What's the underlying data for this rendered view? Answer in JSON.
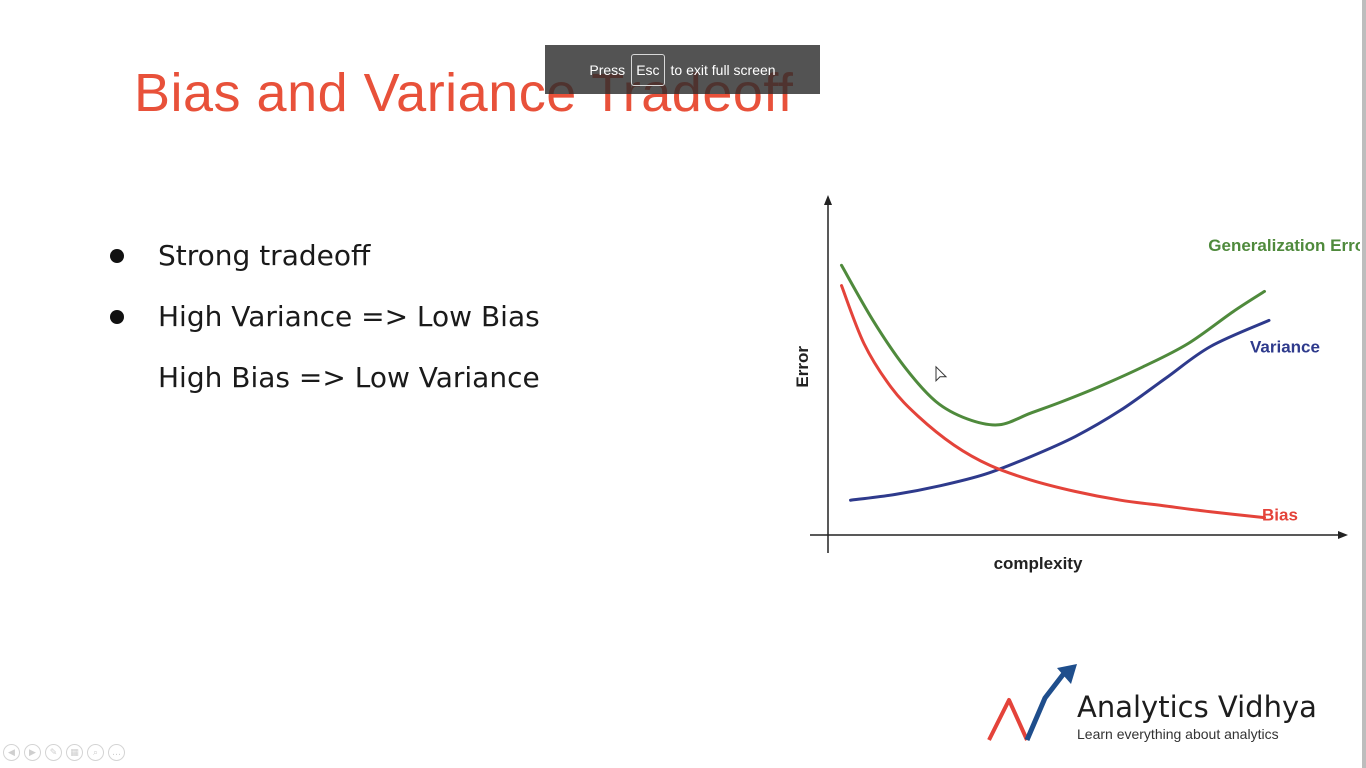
{
  "slide": {
    "title": "Bias and Variance Tradeoff",
    "bullets": [
      {
        "text": "Strong tradeoff",
        "marker": true
      },
      {
        "text": "High Variance => Low Bias",
        "marker": true
      },
      {
        "text": "High Bias => Low Variance",
        "marker": false
      }
    ]
  },
  "fullscreen_notice": {
    "prefix": "Press",
    "key": "Esc",
    "suffix": "to exit full screen"
  },
  "chart_data": {
    "type": "line",
    "xlabel": "complexity",
    "ylabel": "Error",
    "grid": false,
    "series": [
      {
        "name": "Generalization Error",
        "color": "#4f8a3c",
        "x": [
          0.03,
          0.1,
          0.17,
          0.24,
          0.31,
          0.38,
          0.45,
          0.52,
          0.6,
          0.7,
          0.8,
          0.9,
          0.97
        ],
        "y": [
          0.93,
          0.74,
          0.58,
          0.46,
          0.4,
          0.38,
          0.42,
          0.46,
          0.51,
          0.58,
          0.66,
          0.77,
          0.84
        ]
      },
      {
        "name": "Variance",
        "color": "#2e3a8c",
        "x": [
          0.05,
          0.15,
          0.25,
          0.35,
          0.45,
          0.55,
          0.65,
          0.75,
          0.85,
          0.98
        ],
        "y": [
          0.12,
          0.14,
          0.17,
          0.21,
          0.27,
          0.34,
          0.43,
          0.54,
          0.65,
          0.74
        ]
      },
      {
        "name": "Bias",
        "color": "#e4433a",
        "x": [
          0.03,
          0.08,
          0.14,
          0.2,
          0.28,
          0.36,
          0.45,
          0.55,
          0.65,
          0.75,
          0.85,
          0.97
        ],
        "y": [
          0.86,
          0.66,
          0.51,
          0.41,
          0.31,
          0.24,
          0.19,
          0.15,
          0.12,
          0.1,
          0.08,
          0.06
        ]
      }
    ]
  },
  "logo": {
    "name": "Analytics Vidhya",
    "tagline": "Learn everything about analytics",
    "colors": {
      "primary": "#1f4e8c",
      "accent": "#e4433a"
    }
  },
  "presentation_controls": [
    {
      "icon": "previous-icon",
      "glyph": "◀"
    },
    {
      "icon": "next-icon",
      "glyph": "▶"
    },
    {
      "icon": "pen-icon",
      "glyph": "✎"
    },
    {
      "icon": "slides-icon",
      "glyph": "▦"
    },
    {
      "icon": "zoom-icon",
      "glyph": "⌕"
    },
    {
      "icon": "more-icon",
      "glyph": "…"
    }
  ],
  "colors": {
    "title": "#e8513a",
    "toast_bg": "#2d2d2d"
  }
}
